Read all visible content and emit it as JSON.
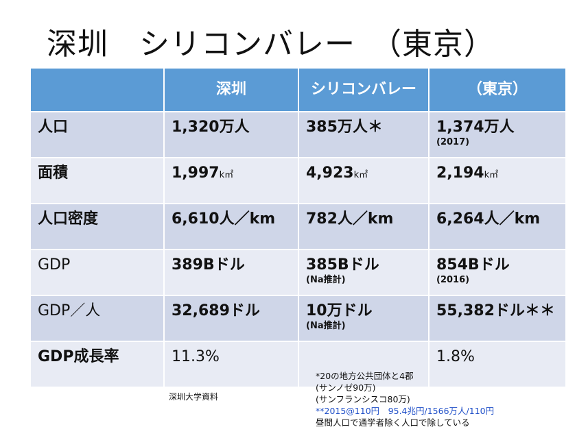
{
  "title": "深圳　シリコンバレー　（東京）",
  "table": {
    "headers": [
      "",
      "深圳",
      "シリコンバレー",
      "（東京）"
    ],
    "rows": [
      {
        "label": "人口",
        "cells": [
          {
            "value": "1,320万人",
            "note": ""
          },
          {
            "value": "385万人＊",
            "note": ""
          },
          {
            "value": "1,374万人",
            "note": "(2017)"
          }
        ]
      },
      {
        "label": "面積",
        "cells": [
          {
            "value": "1,997",
            "unit": "k㎡",
            "note": ""
          },
          {
            "value": "4,923",
            "unit": "k㎡",
            "note": ""
          },
          {
            "value": "2,194",
            "unit": "k㎡",
            "note": ""
          }
        ]
      },
      {
        "label": "人口密度",
        "cells": [
          {
            "value": "6,610人／km",
            "note": ""
          },
          {
            "value": "782人／km",
            "note": ""
          },
          {
            "value": "6,264人／km",
            "note": ""
          }
        ]
      },
      {
        "label": "GDP",
        "cells": [
          {
            "value": "389Bドル",
            "note": ""
          },
          {
            "value": "385Bドル",
            "note": "(Na推計)"
          },
          {
            "value": "854Bドル",
            "note": "(2016)"
          }
        ]
      },
      {
        "label": "GDP／人",
        "cells": [
          {
            "value": "32,689ドル",
            "note": ""
          },
          {
            "value": "10万ドル",
            "note": "(Na推計)"
          },
          {
            "value": "55,382ドル＊＊",
            "note": ""
          }
        ]
      },
      {
        "label": "GDP成長率",
        "cells": [
          {
            "value": "11.3%",
            "note": ""
          },
          {
            "value": "",
            "note": ""
          },
          {
            "value": "1.8%",
            "note": ""
          }
        ]
      }
    ]
  },
  "source_note": "深圳大学資料",
  "footnotes": [
    "*20の地方公共団体と4郡",
    "(サンノゼ90万)",
    "(サンフランシスコ80万)",
    "**2015@110円　95.4兆円/1566万人/110円",
    "昼間人口で通学者除く人口で除している"
  ]
}
